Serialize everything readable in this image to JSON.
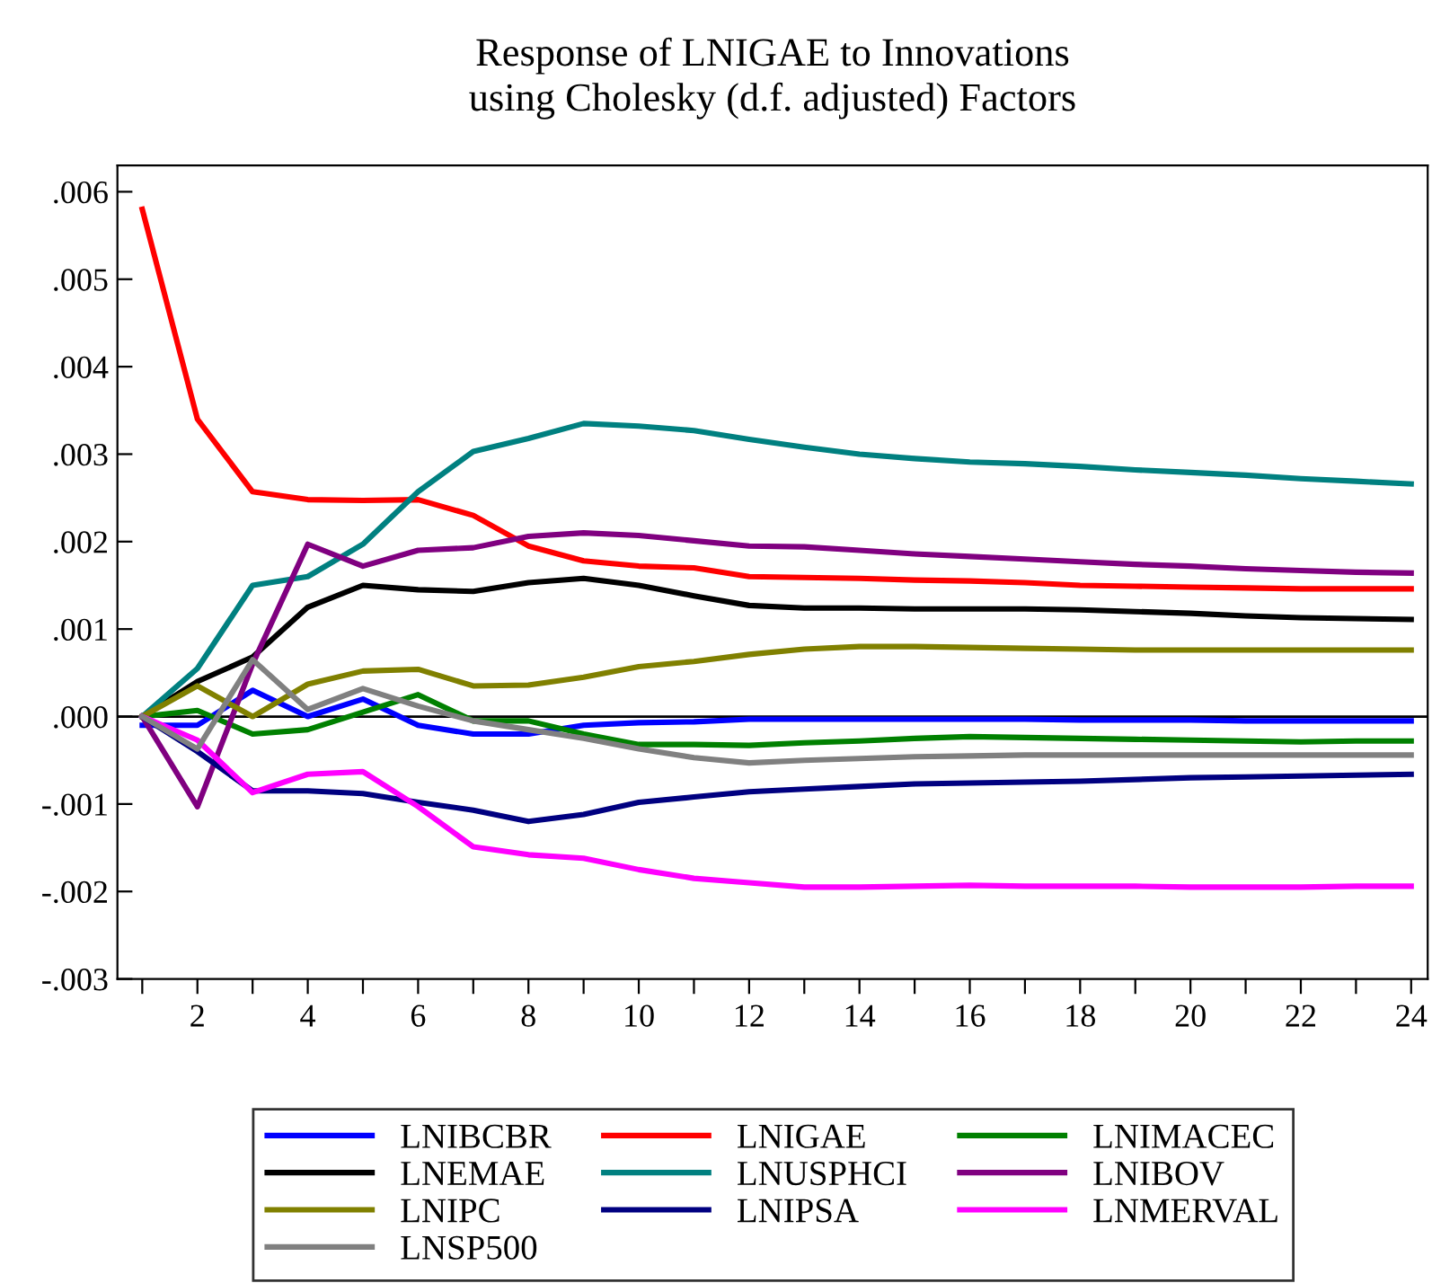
{
  "chart_data": {
    "type": "line",
    "title": "Response of LNIGAE to Innovations\nusing Cholesky (d.f. adjusted) Factors",
    "x": [
      1,
      2,
      3,
      4,
      5,
      6,
      7,
      8,
      9,
      10,
      11,
      12,
      13,
      14,
      15,
      16,
      17,
      18,
      19,
      20,
      21,
      22,
      23,
      24
    ],
    "xlim": [
      0.55,
      24.3
    ],
    "xticks": [
      {
        "value": 1,
        "label": null
      },
      2,
      {
        "value": 3,
        "label": null
      },
      4,
      {
        "value": 5,
        "label": null
      },
      6,
      {
        "value": 7,
        "label": null
      },
      8,
      {
        "value": 9,
        "label": null
      },
      10,
      {
        "value": 11,
        "label": null
      },
      12,
      {
        "value": 13,
        "label": null
      },
      14,
      {
        "value": 15,
        "label": null
      },
      16,
      {
        "value": 17,
        "label": null
      },
      18,
      {
        "value": 19,
        "label": null
      },
      20,
      {
        "value": 21,
        "label": null
      },
      22,
      {
        "value": 23,
        "label": null
      },
      24
    ],
    "ylim": [
      -0.003,
      0.0063
    ],
    "yticks": [
      {
        "value": -0.003,
        "label": "-.003"
      },
      {
        "value": -0.002,
        "label": "-.002"
      },
      {
        "value": -0.001,
        "label": "-.001"
      },
      {
        "value": 0,
        "label": ".000"
      },
      {
        "value": 0.001,
        "label": ".001"
      },
      {
        "value": 0.002,
        "label": ".002"
      },
      {
        "value": 0.003,
        "label": ".003"
      },
      {
        "value": 0.004,
        "label": ".004"
      },
      {
        "value": 0.005,
        "label": ".005"
      },
      {
        "value": 0.006,
        "label": ".006"
      }
    ],
    "ref_lines": [
      {
        "axis": "y",
        "value": 0,
        "color": "#000000"
      }
    ],
    "grid": false,
    "legend": "bottom",
    "marker": "none",
    "line_style": "solid",
    "series": [
      {
        "name": "LNIBCBR",
        "color": "#0000ff",
        "values": [
          -0.0001,
          -0.0001,
          0.0003,
          0.0,
          0.0002,
          -0.0001,
          -0.0002,
          -0.0002,
          -0.0001,
          -7e-05,
          -6e-05,
          -3e-05,
          -3e-05,
          -3e-05,
          -3e-05,
          -3e-05,
          -3e-05,
          -4e-05,
          -4e-05,
          -4e-05,
          -5e-05,
          -5e-05,
          -5e-05,
          -5e-05
        ]
      },
      {
        "name": "LNIGAE",
        "color": "#ff0000",
        "values": [
          0.0058,
          0.0034,
          0.00257,
          0.00248,
          0.00247,
          0.00248,
          0.0023,
          0.00195,
          0.00178,
          0.00172,
          0.0017,
          0.0016,
          0.00159,
          0.00158,
          0.00156,
          0.00155,
          0.00153,
          0.0015,
          0.00149,
          0.00148,
          0.00147,
          0.00146,
          0.00146,
          0.00146
        ]
      },
      {
        "name": "LNIMACEC",
        "color": "#008000",
        "values": [
          0.0,
          7e-05,
          -0.0002,
          -0.00015,
          5e-05,
          0.00025,
          -5e-05,
          -5e-05,
          -0.0002,
          -0.00032,
          -0.00032,
          -0.00033,
          -0.0003,
          -0.00028,
          -0.00025,
          -0.00023,
          -0.00024,
          -0.00025,
          -0.00026,
          -0.00027,
          -0.00028,
          -0.00029,
          -0.00028,
          -0.00028
        ]
      },
      {
        "name": "LNEMAE",
        "color": "#000000",
        "values": [
          0.0,
          0.0004,
          0.00068,
          0.00125,
          0.0015,
          0.00145,
          0.00143,
          0.00153,
          0.00158,
          0.0015,
          0.00138,
          0.00127,
          0.00124,
          0.00124,
          0.00123,
          0.00123,
          0.00123,
          0.00122,
          0.0012,
          0.00118,
          0.00115,
          0.00113,
          0.00112,
          0.00111
        ]
      },
      {
        "name": "LNUSPHCI",
        "color": "#008080",
        "values": [
          0.0,
          0.00055,
          0.0015,
          0.0016,
          0.00197,
          0.00257,
          0.00303,
          0.00318,
          0.00335,
          0.00332,
          0.00327,
          0.00317,
          0.00308,
          0.003,
          0.00295,
          0.00291,
          0.00289,
          0.00286,
          0.00282,
          0.00279,
          0.00276,
          0.00272,
          0.00269,
          0.00266
        ]
      },
      {
        "name": "LNIBOV",
        "color": "#800080",
        "values": [
          0.0,
          -0.00103,
          0.0006,
          0.00197,
          0.00172,
          0.0019,
          0.00193,
          0.00206,
          0.0021,
          0.00207,
          0.00201,
          0.00195,
          0.00194,
          0.0019,
          0.00186,
          0.00183,
          0.0018,
          0.00177,
          0.00174,
          0.00172,
          0.00169,
          0.00167,
          0.00165,
          0.00164
        ]
      },
      {
        "name": "LNIPC",
        "color": "#808000",
        "values": [
          0.0,
          0.00035,
          0.0,
          0.00037,
          0.00052,
          0.00054,
          0.00035,
          0.00036,
          0.00045,
          0.00057,
          0.00063,
          0.00071,
          0.00077,
          0.0008,
          0.0008,
          0.00079,
          0.00078,
          0.00077,
          0.00076,
          0.00076,
          0.00076,
          0.00076,
          0.00076,
          0.00076
        ]
      },
      {
        "name": "LNIPSA",
        "color": "#000080",
        "values": [
          0.0,
          -0.0004,
          -0.00085,
          -0.00085,
          -0.00088,
          -0.00098,
          -0.00107,
          -0.0012,
          -0.00112,
          -0.00098,
          -0.00092,
          -0.00086,
          -0.00083,
          -0.0008,
          -0.00077,
          -0.00076,
          -0.00075,
          -0.00074,
          -0.00072,
          -0.0007,
          -0.00069,
          -0.00068,
          -0.00067,
          -0.00066
        ]
      },
      {
        "name": "LNMERVAL",
        "color": "#ff00ff",
        "values": [
          0.0,
          -0.00027,
          -0.00087,
          -0.00066,
          -0.00063,
          -0.00103,
          -0.00149,
          -0.00158,
          -0.00162,
          -0.00175,
          -0.00185,
          -0.0019,
          -0.00195,
          -0.00195,
          -0.00194,
          -0.00193,
          -0.00194,
          -0.00194,
          -0.00194,
          -0.00195,
          -0.00195,
          -0.00195,
          -0.00194,
          -0.00194
        ]
      },
      {
        "name": "LNSP500",
        "color": "#808080",
        "values": [
          0.0,
          -0.00037,
          0.00065,
          8e-05,
          0.00032,
          0.00012,
          -5e-05,
          -0.00015,
          -0.00025,
          -0.00037,
          -0.00047,
          -0.00053,
          -0.0005,
          -0.00048,
          -0.00046,
          -0.00045,
          -0.00044,
          -0.00044,
          -0.00044,
          -0.00044,
          -0.00044,
          -0.00044,
          -0.00044,
          -0.00044
        ]
      }
    ]
  }
}
